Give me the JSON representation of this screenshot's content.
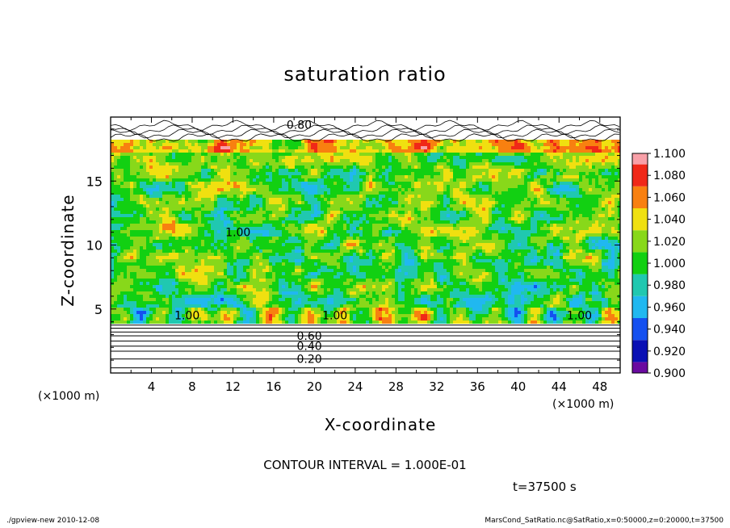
{
  "chart_data": {
    "type": "heatmap",
    "title": "saturation ratio",
    "xlabel": "X-coordinate",
    "ylabel": "Z-coordinate",
    "x_unit_label": "(×1000 m)",
    "z_unit_label": "(×1000 m)",
    "xlim": [
      0,
      50
    ],
    "ylim": [
      0,
      20
    ],
    "x_ticks": [
      4,
      8,
      12,
      16,
      20,
      24,
      28,
      32,
      36,
      40,
      44,
      48
    ],
    "y_ticks": [
      5,
      10,
      15
    ],
    "colorbar": {
      "levels": [
        0.9,
        0.92,
        0.94,
        0.96,
        0.98,
        1.0,
        1.02,
        1.04,
        1.06,
        1.08,
        1.1
      ],
      "labels": [
        "0.900",
        "0.920",
        "0.940",
        "0.960",
        "0.980",
        "1.000",
        "1.020",
        "1.040",
        "1.060",
        "1.080",
        "1.100"
      ],
      "colors": [
        "#6a0aa0",
        "#0a10b4",
        "#1450f0",
        "#20b8f0",
        "#20c8b0",
        "#12d012",
        "#88d81a",
        "#f0e010",
        "#f88010",
        "#f02818",
        "#f8a0a8"
      ]
    },
    "contour_labels": [
      "0.20",
      "0.40",
      "0.60",
      "0.80",
      "1.00"
    ],
    "contour_interval_text": "CONTOUR INTERVAL = 1.000E-01",
    "time_text": "t=37500 s",
    "grid": false
  },
  "footer": {
    "left": "./gpview-new  2010-12-08",
    "right": "MarsCond_SatRatio.nc@SatRatio,x=0:50000,z=0:20000,t=37500"
  }
}
